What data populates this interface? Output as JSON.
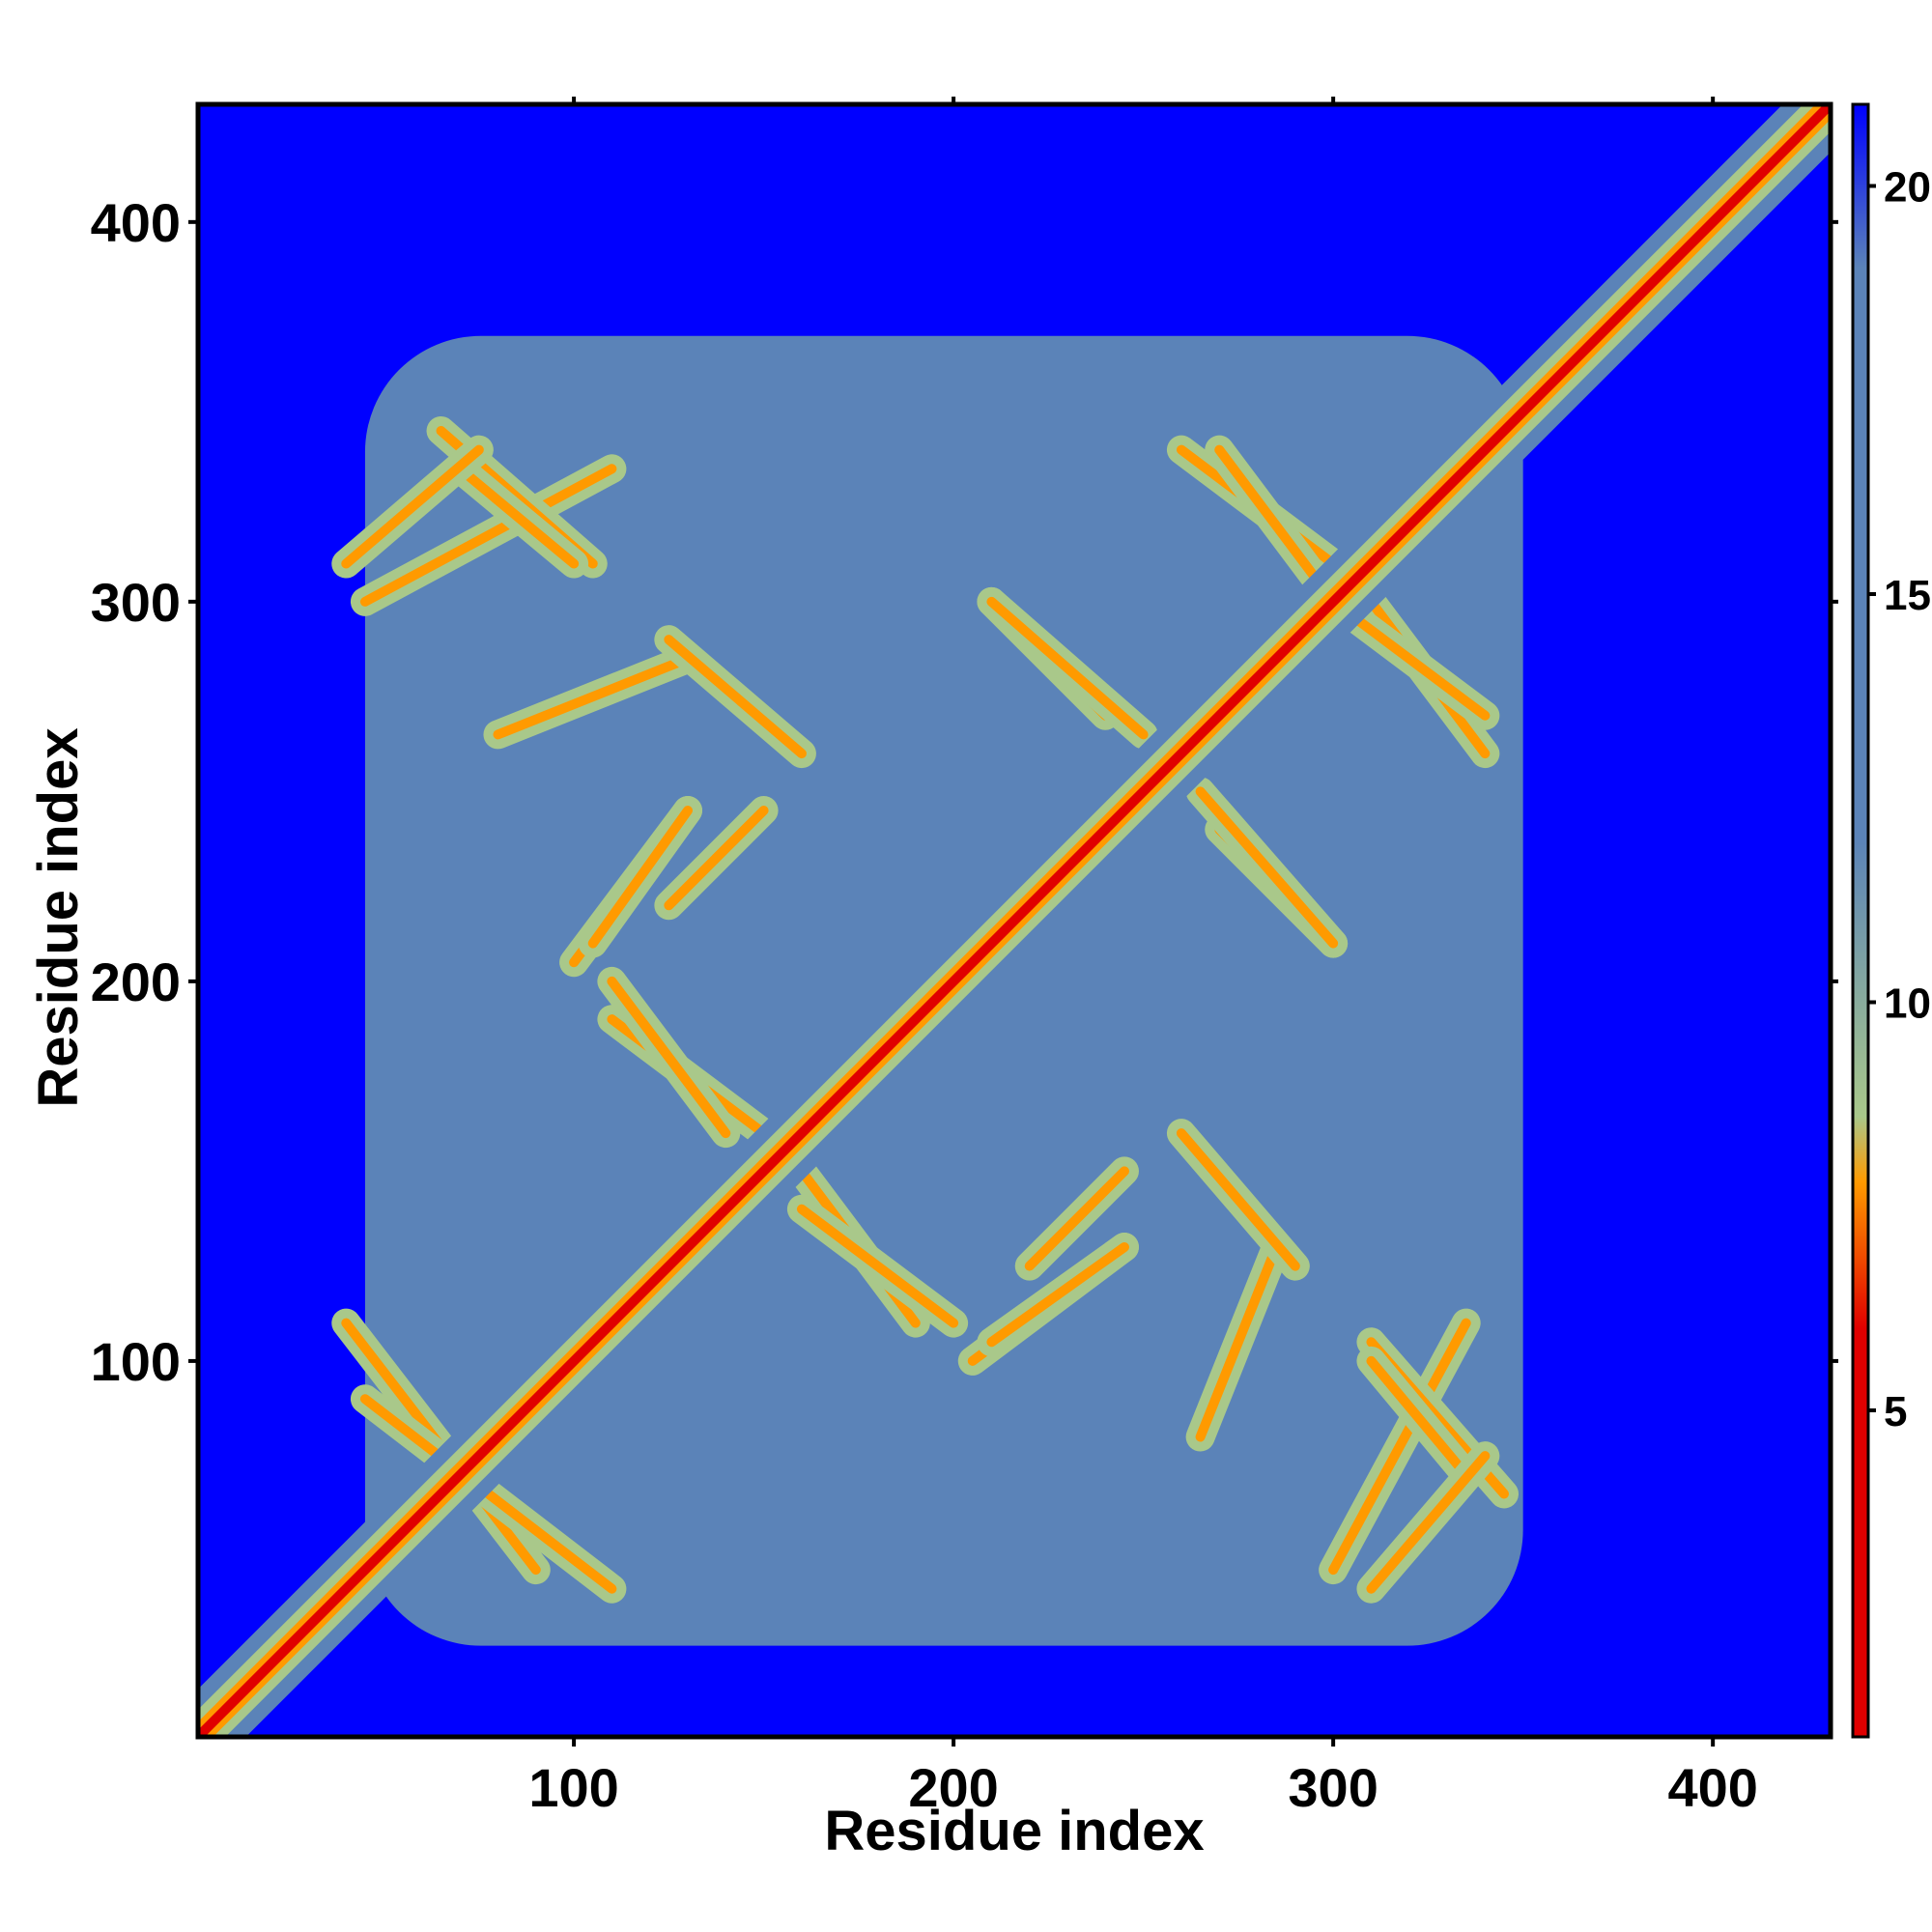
{
  "chart_data": {
    "type": "heatmap",
    "title": "",
    "xlabel": "Residue index",
    "ylabel": "Residue index",
    "xlim": [
      1,
      431
    ],
    "ylim": [
      1,
      431
    ],
    "x_ticks": [
      100,
      200,
      300,
      400
    ],
    "y_ticks": [
      100,
      200,
      300,
      400
    ],
    "x_tick_labels": [
      "100",
      "200",
      "300",
      "400"
    ],
    "y_tick_labels": [
      "100",
      "200",
      "300",
      "400"
    ],
    "colorbar": {
      "range": [
        1,
        21
      ],
      "ticks": [
        5,
        10,
        15,
        20
      ],
      "tick_labels": [
        "5",
        "10",
        "15",
        "20"
      ],
      "colors": {
        "low": "#e00000",
        "mid_low": "#ff9a00",
        "mid": "#a9c88a",
        "high": "#5b83b8",
        "max": "#0000ff"
      }
    },
    "colors": {
      "far": "#0000ff",
      "medium": "#5b83b8",
      "near": "#a9c88a",
      "close": "#ff9a00",
      "contact": "#e00000"
    },
    "structure": {
      "diagonal_range": [
        1,
        431
      ],
      "contact_regions": [
        {
          "x": [
            45,
            350
          ],
          "y": [
            25,
            370
          ],
          "level": "medium"
        }
      ],
      "antiparallel_strands": [
        {
          "x": [
            40,
            90
          ],
          "y": [
            110,
            45
          ]
        },
        {
          "x": [
            45,
            110
          ],
          "y": [
            300,
            335
          ]
        },
        {
          "x": [
            65,
            105
          ],
          "y": [
            345,
            310
          ]
        },
        {
          "x": [
            80,
            130
          ],
          "y": [
            265,
            285
          ]
        },
        {
          "x": [
            110,
            150
          ],
          "y": [
            190,
            160
          ]
        },
        {
          "x": [
            125,
            150
          ],
          "y": [
            220,
            245
          ]
        },
        {
          "x": [
            125,
            160
          ],
          "y": [
            290,
            260
          ]
        },
        {
          "x": [
            160,
            200
          ],
          "y": [
            140,
            110
          ]
        },
        {
          "x": [
            205,
            245
          ],
          "y": [
            100,
            130
          ]
        },
        {
          "x": [
            210,
            240
          ],
          "y": [
            300,
            270
          ]
        },
        {
          "x": [
            260,
            300
          ],
          "y": [
            340,
            310
          ]
        },
        {
          "x": [
            265,
            300
          ],
          "y": [
            250,
            210
          ]
        },
        {
          "x": [
            300,
            340
          ],
          "y": [
            300,
            270
          ]
        },
        {
          "x": [
            310,
            335
          ],
          "y": [
            100,
            70
          ]
        },
        {
          "x": [
            310,
            340
          ],
          "y": [
            40,
            75
          ]
        },
        {
          "x": [
            210,
            245
          ],
          "y": [
            105,
            130
          ]
        }
      ]
    }
  }
}
